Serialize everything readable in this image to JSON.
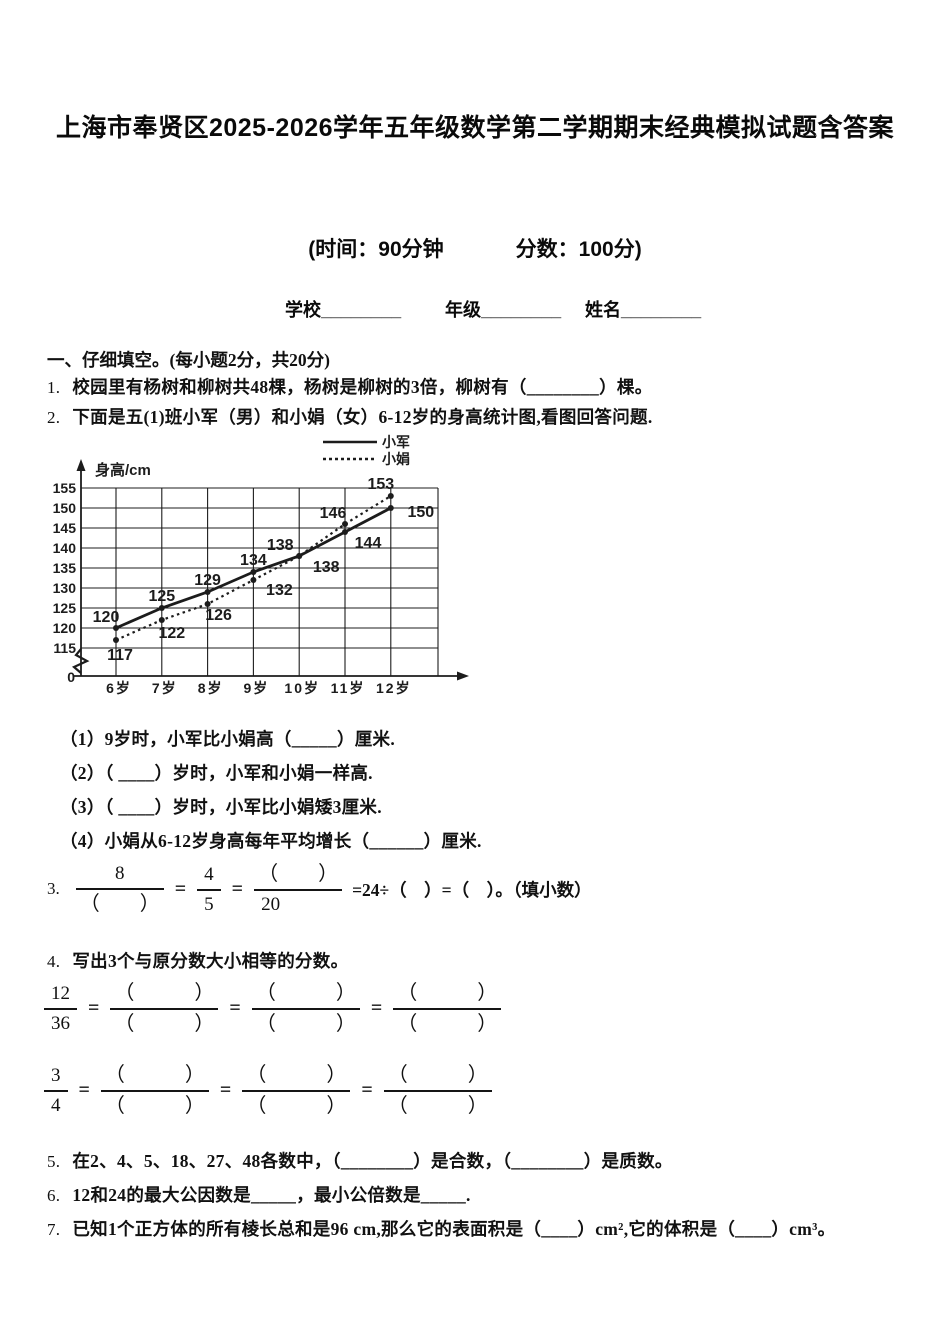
{
  "sym": {
    "pl": "（",
    "pr": "）",
    "eq": "="
  },
  "page": {
    "title": "上海市奉贤区2025-2026学年五年级数学第二学期期末经典模拟试题含答案",
    "time": "(时间：90分钟",
    "score": "分数：100分)",
    "school": "学校________",
    "grade": "年级________",
    "name": "姓名________"
  },
  "section1": {
    "heading": "一、仔细填空。(每小题2分，共20分)",
    "q1": {
      "num": "1.",
      "text": "校园里有杨树和柳树共48棵，杨树是柳树的3倍，柳树有（________）棵。"
    },
    "q2": {
      "num": "2.",
      "text": "下面是五(1)班小军（男）和小娟（女）6-12岁的身高统计图,看图回答问题."
    },
    "q2_subs": [
      "（1）9岁时，小军比小娟高（_____）厘米.",
      "（2）（ ____）岁时，小军和小娟一样高.",
      "（3）（ ____）岁时，小军比小娟矮3厘米.",
      "（4）小娟从6-12岁身高每年平均增长（______）厘米."
    ],
    "q3": {
      "num": "3.",
      "f1n": "8",
      "f2n": "4",
      "f2d": "5",
      "f3d": "20",
      "tail": "=24÷（　）=（　）。（填小数）"
    },
    "q4": {
      "num": "4.",
      "text": "写出3个与原分数大小相等的分数。",
      "rows": [
        {
          "n": "12",
          "d": "36"
        },
        {
          "n": "3",
          "d": "4"
        }
      ]
    },
    "q5": {
      "num": "5.",
      "text": "在2、4、5、18、27、48各数中，（________）是合数，（________）是质数。"
    },
    "q6": {
      "num": "6.",
      "text": "12和24的最大公因数是_____，最小公倍数是_____."
    },
    "q7": {
      "num": "7.",
      "text": "已知1个正方体的所有棱长总和是96 cm,那么它的表面积是（____）cm²,它的体积是（____）cm³。"
    }
  },
  "chart_data": {
    "type": "line",
    "title": "",
    "ylabel": "身高/cm",
    "x": [
      6,
      7,
      8,
      9,
      10,
      11,
      12
    ],
    "x_tick_labels": [
      "6岁",
      "7岁",
      "8岁",
      "9岁",
      "10岁",
      "11岁",
      "12岁"
    ],
    "y_ticks": [
      155,
      150,
      145,
      140,
      135,
      130,
      125,
      120,
      115
    ],
    "origin_label": "0",
    "ylim": [
      115,
      155
    ],
    "axis_break": true,
    "grid": true,
    "legend_position": "top-right",
    "ink": "#1c1c1c",
    "series": [
      {
        "name": "小军",
        "line_style": "solid",
        "values": [
          120,
          125,
          129,
          134,
          138,
          144,
          150
        ],
        "label_offsets": [
          [
            -10,
            -6
          ],
          [
            0,
            -7
          ],
          [
            0,
            -7
          ],
          [
            0,
            -7
          ],
          [
            -19,
            -6
          ],
          [
            23,
            16
          ],
          [
            30,
            9
          ]
        ]
      },
      {
        "name": "小娟",
        "line_style": "dotted",
        "values": [
          117,
          122,
          126,
          132,
          138,
          146,
          153
        ],
        "label_offsets": [
          [
            4,
            20
          ],
          [
            10,
            18
          ],
          [
            11,
            16
          ],
          [
            26,
            15
          ],
          [
            27,
            16
          ],
          [
            -12,
            -6
          ],
          [
            -10,
            -7
          ]
        ]
      }
    ]
  }
}
